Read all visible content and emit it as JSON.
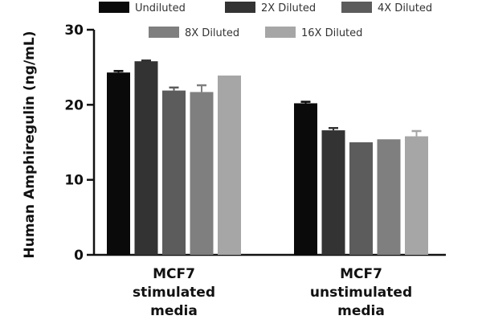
{
  "chart_data": {
    "type": "bar",
    "ylabel": "Human Amphiregulin (ng/mL)",
    "ylim": [
      0,
      30
    ],
    "yticks": [
      0,
      10,
      20,
      30
    ],
    "categories": [
      [
        "MCF7",
        "stimulated",
        "media"
      ],
      [
        "MCF7",
        "unstimulated",
        "media"
      ]
    ],
    "series": [
      {
        "name": "Undiluted",
        "color": "#0a0a0a",
        "values": [
          24.3,
          20.2
        ],
        "errors": [
          0.2,
          0.2
        ]
      },
      {
        "name": "2X Diluted",
        "color": "#333333",
        "values": [
          25.8,
          16.6
        ],
        "errors": [
          0.1,
          0.3
        ]
      },
      {
        "name": "4X Diluted",
        "color": "#5c5c5c",
        "values": [
          21.9,
          15.0
        ],
        "errors": [
          0.4,
          0.0
        ]
      },
      {
        "name": "8X Diluted",
        "color": "#7f7f7f",
        "values": [
          21.7,
          15.4
        ],
        "errors": [
          0.9,
          0.0
        ]
      },
      {
        "name": "16X Diluted",
        "color": "#a6a6a6",
        "values": [
          23.9,
          15.8
        ],
        "errors": [
          0.0,
          0.7
        ]
      }
    ],
    "legend": "top",
    "grid": false
  }
}
